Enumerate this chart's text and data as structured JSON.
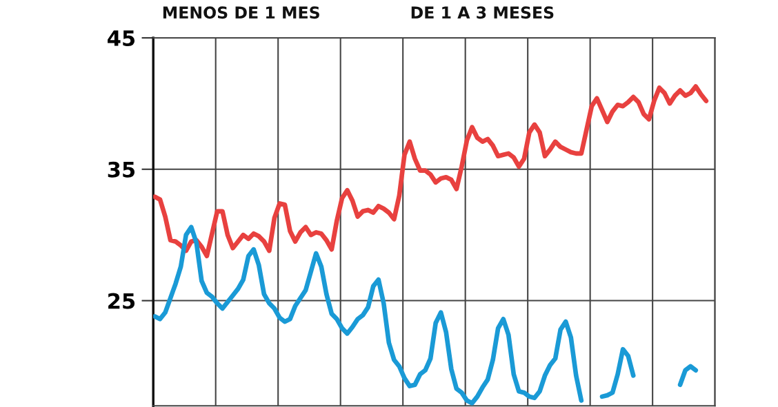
{
  "chart_data": {
    "type": "line",
    "annotations": [
      "MENOS DE 1 MES",
      "DE 1 A 3 MESES"
    ],
    "categories": [
      null,
      null,
      null,
      null,
      null,
      null,
      null,
      null,
      null,
      null,
      null,
      null,
      null,
      null,
      null,
      null,
      null,
      null,
      null,
      null,
      null,
      null,
      null,
      null,
      null,
      null,
      null,
      null,
      null,
      null,
      null,
      null,
      null,
      null,
      null,
      null,
      null,
      null,
      null,
      null,
      null,
      null,
      null,
      null,
      null,
      null,
      null,
      null,
      null,
      null,
      null,
      null,
      null,
      null,
      null,
      null,
      null,
      null,
      null,
      null,
      null,
      null,
      null,
      null,
      null,
      null,
      null,
      null,
      null,
      null,
      null,
      null,
      null,
      null,
      null,
      null,
      null,
      null,
      null,
      null,
      null,
      null,
      null,
      null,
      null,
      null,
      null,
      null,
      null,
      null,
      null,
      null,
      null,
      null,
      null,
      null,
      null,
      null,
      null,
      null,
      null,
      null,
      null,
      null,
      null,
      null,
      null
    ],
    "ylim": [
      17,
      45
    ],
    "yticks": [
      25,
      35,
      45
    ],
    "grid": true,
    "series": [
      {
        "color": "#e8413f",
        "values": [
          32.9,
          32.7,
          31.4,
          29.6,
          29.5,
          29.2,
          28.8,
          29.5,
          29.6,
          29.1,
          28.4,
          30.1,
          31.8,
          31.8,
          30.0,
          29.0,
          29.5,
          30.0,
          29.7,
          30.1,
          29.9,
          29.5,
          28.8,
          31.3,
          32.4,
          32.3,
          30.3,
          29.5,
          30.2,
          30.6,
          30.0,
          30.2,
          30.1,
          29.6,
          28.9,
          31.1,
          32.8,
          33.4,
          32.6,
          31.4,
          31.8,
          31.9,
          31.7,
          32.2,
          32.0,
          31.7,
          31.2,
          33.0,
          36.1,
          37.1,
          35.8,
          34.9,
          34.9,
          34.6,
          34.0,
          34.3,
          34.4,
          34.2,
          33.5,
          35.2,
          37.2,
          38.2,
          37.4,
          37.1,
          37.3,
          36.8,
          36.0,
          36.1,
          36.2,
          35.9,
          35.2,
          35.8,
          37.8,
          38.4,
          37.8,
          36.0,
          36.5,
          37.1,
          36.7,
          36.5,
          36.3,
          36.2,
          36.2,
          38.0,
          39.8,
          40.4,
          39.5,
          38.6,
          39.4,
          39.9,
          39.8,
          40.1,
          40.5,
          40.1,
          39.2,
          38.8,
          40.2,
          41.2,
          40.8,
          40.0,
          40.6,
          41.0,
          40.6,
          40.8,
          41.3,
          40.7,
          40.2
        ]
      },
      {
        "color": "#1a9ad6",
        "values": [
          23.8,
          23.6,
          24.1,
          25.2,
          26.3,
          27.6,
          30.0,
          30.6,
          29.4,
          26.5,
          25.6,
          25.3,
          24.8,
          24.4,
          24.9,
          25.4,
          25.9,
          26.6,
          28.4,
          28.9,
          27.7,
          25.5,
          24.8,
          24.4,
          23.7,
          23.4,
          23.6,
          24.6,
          25.2,
          25.8,
          27.2,
          28.6,
          27.6,
          25.5,
          24.0,
          23.6,
          22.9,
          22.5,
          23.0,
          23.6,
          23.9,
          24.5,
          26.1,
          26.6,
          24.8,
          21.8,
          20.5,
          20.0,
          19.1,
          18.5,
          18.6,
          19.4,
          19.7,
          20.6,
          23.3,
          24.1,
          22.6,
          19.8,
          18.3,
          18.0,
          17.4,
          17.2,
          17.7,
          18.4,
          19.0,
          20.5,
          22.9,
          23.6,
          22.4,
          19.4,
          18.1,
          18.0,
          17.7,
          17.6,
          18.1,
          19.3,
          20.1,
          20.6,
          22.8,
          23.4,
          22.2,
          19.3,
          17.4,
          null,
          null,
          null,
          17.7,
          17.8,
          18.0,
          19.4,
          21.3,
          20.8,
          19.3,
          null,
          null,
          null,
          null,
          null,
          null,
          null,
          null,
          18.6,
          19.7,
          20.0,
          19.7,
          null,
          null
        ]
      }
    ]
  }
}
